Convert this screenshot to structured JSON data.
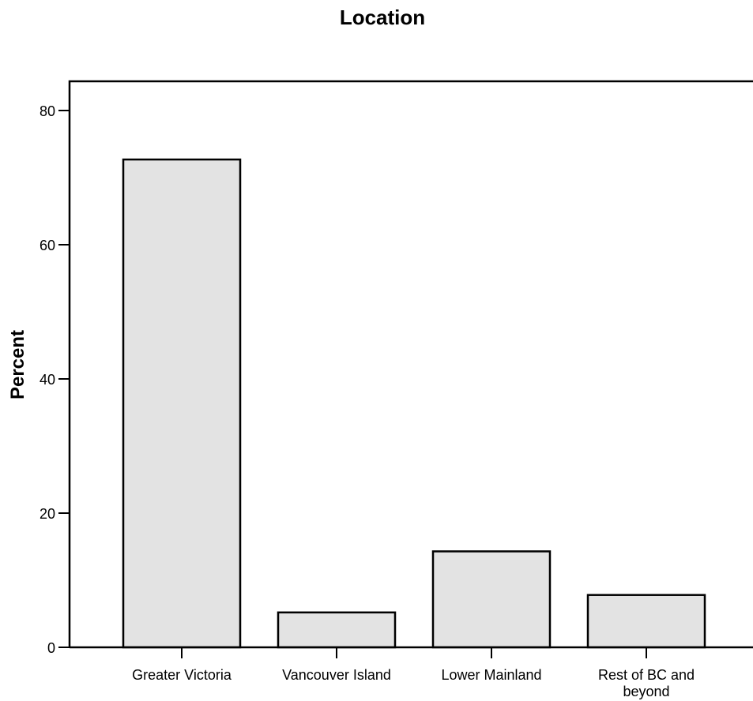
{
  "chart_data": {
    "type": "bar",
    "title": "Location",
    "xlabel": "",
    "ylabel": "Percent",
    "categories": [
      "Greater Victoria",
      "Vancouver Island",
      "Lower Mainland",
      "Rest of BC and beyond"
    ],
    "category_label_lines": [
      [
        "Greater Victoria"
      ],
      [
        "Vancouver Island"
      ],
      [
        "Lower Mainland"
      ],
      [
        "Rest of BC and",
        "beyond"
      ]
    ],
    "values": [
      72.7,
      5.2,
      14.3,
      7.8
    ],
    "ylim": [
      0,
      80
    ],
    "yticks": [
      "0",
      "20",
      "40",
      "60",
      "80"
    ],
    "grid": false,
    "bar_fill": "#e3e3e3",
    "bar_stroke": "#000000"
  }
}
